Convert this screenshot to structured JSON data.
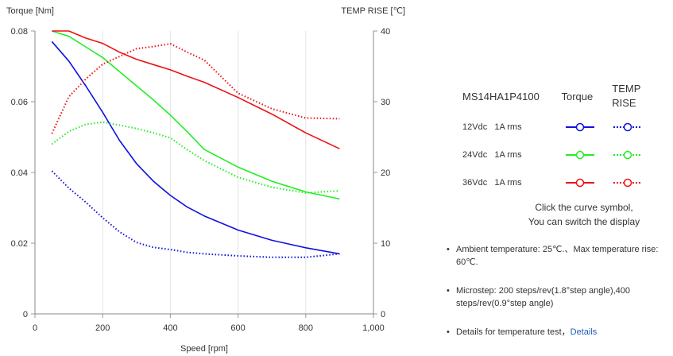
{
  "chart_data": {
    "type": "line",
    "xlabel": "Speed [rpm]",
    "ylabel_left": "Torque  [Nm]",
    "ylabel_right": "TEMP RISE [℃]",
    "xlim": [
      0,
      1000
    ],
    "ylim_left": [
      0,
      0.08
    ],
    "ylim_right": [
      0,
      40
    ],
    "x_ticks": [
      "0",
      "200",
      "400",
      "600",
      "800",
      "1,000"
    ],
    "y_left_ticks": [
      "0",
      "0.02",
      "0.04",
      "0.06",
      "0.08"
    ],
    "y_right_ticks": [
      "0",
      "10",
      "20",
      "30",
      "40"
    ],
    "grid": "vertical",
    "series": [
      {
        "name": "12Vdc Torque",
        "axis": "left",
        "style": "solid",
        "color": "#1010e0",
        "x": [
          50,
          100,
          150,
          200,
          250,
          300,
          350,
          400,
          450,
          500,
          600,
          700,
          800,
          900
        ],
        "y": [
          0.077,
          0.0715,
          0.0645,
          0.057,
          0.049,
          0.0425,
          0.0375,
          0.0335,
          0.0302,
          0.0277,
          0.0237,
          0.0208,
          0.0187,
          0.017
        ]
      },
      {
        "name": "12Vdc TEMP RISE",
        "axis": "right",
        "style": "dotted",
        "color": "#1010e0",
        "x": [
          50,
          100,
          150,
          200,
          250,
          300,
          350,
          400,
          450,
          500,
          600,
          700,
          800,
          900
        ],
        "y": [
          20.2,
          17.8,
          15.8,
          13.6,
          11.6,
          10.1,
          9.4,
          9.1,
          8.7,
          8.5,
          8.2,
          8.0,
          8.0,
          8.5
        ]
      },
      {
        "name": "24Vdc Torque",
        "axis": "left",
        "style": "solid",
        "color": "#22ee22",
        "x": [
          50,
          100,
          150,
          200,
          250,
          300,
          350,
          400,
          450,
          500,
          600,
          700,
          800,
          900
        ],
        "y": [
          0.08,
          0.0785,
          0.0755,
          0.0725,
          0.0685,
          0.0645,
          0.0605,
          0.0562,
          0.0515,
          0.0465,
          0.0415,
          0.0375,
          0.0345,
          0.0325
        ]
      },
      {
        "name": "24Vdc TEMP RISE",
        "axis": "right",
        "style": "dotted",
        "color": "#22ee22",
        "x": [
          50,
          100,
          150,
          200,
          250,
          300,
          350,
          400,
          450,
          500,
          600,
          700,
          800,
          900
        ],
        "y": [
          24.0,
          25.8,
          26.8,
          27.1,
          26.7,
          26.2,
          25.6,
          24.9,
          23.2,
          21.7,
          19.3,
          17.9,
          17.1,
          17.4
        ]
      },
      {
        "name": "36Vdc Torque",
        "axis": "left",
        "style": "solid",
        "color": "#ee1111",
        "x": [
          50,
          100,
          150,
          200,
          250,
          300,
          350,
          400,
          450,
          500,
          600,
          700,
          800,
          900
        ],
        "y": [
          0.08,
          0.08,
          0.078,
          0.0765,
          0.074,
          0.072,
          0.0705,
          0.069,
          0.0672,
          0.0655,
          0.0612,
          0.0565,
          0.0512,
          0.0467
        ]
      },
      {
        "name": "36Vdc TEMP RISE",
        "axis": "right",
        "style": "dotted",
        "color": "#ee1111",
        "x": [
          50,
          100,
          150,
          200,
          250,
          300,
          350,
          400,
          450,
          500,
          600,
          700,
          800,
          900
        ],
        "y": [
          25.5,
          30.7,
          33.2,
          35.3,
          36.4,
          37.5,
          37.8,
          38.2,
          37.0,
          35.9,
          31.2,
          29.0,
          27.7,
          27.6
        ]
      }
    ]
  },
  "legend": {
    "model": "MS14HA1P4100",
    "torque_header": "Torque",
    "temp_header_line1": "TEMP",
    "temp_header_line2": "RISE",
    "rows": [
      {
        "label": "12Vdc   1A rms",
        "color": "#1010e0"
      },
      {
        "label": "24Vdc   1A rms",
        "color": "#22ee22"
      },
      {
        "label": "36Vdc   1A rms",
        "color": "#ee1111"
      }
    ]
  },
  "hint": {
    "line1": "Click the curve symbol,",
    "line2": "You can switch the display"
  },
  "notes": {
    "ambient": "Ambient temperature: 25℃.、Max temperature rise: 60℃.",
    "microstep": "Microstep: 200 steps/rev(1.8°step angle),400 steps/rev(0.9°step angle)",
    "details_text": "Details for temperature test，",
    "details_link": "Details"
  }
}
